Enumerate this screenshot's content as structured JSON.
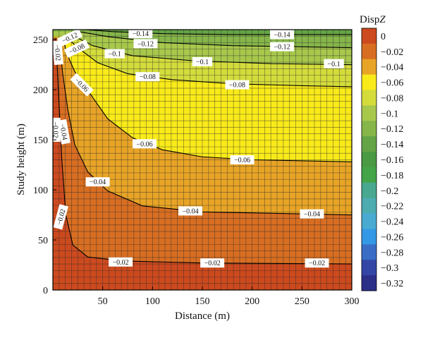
{
  "chart_data": {
    "type": "contour",
    "xlabel": "Distance (m)",
    "ylabel": "Study height (m)",
    "xlim": [
      0,
      300
    ],
    "ylim": [
      0,
      260
    ],
    "x_ticks": [
      50,
      100,
      150,
      200,
      250,
      300
    ],
    "y_ticks": [
      0,
      50,
      100,
      150,
      200,
      250
    ],
    "grid": true,
    "colorbar": {
      "title_prefix": "Disp",
      "title_italic": "Z",
      "levels": [
        0,
        -0.02,
        -0.04,
        -0.06,
        -0.08,
        -0.1,
        -0.12,
        -0.14,
        -0.16,
        -0.18,
        -0.2,
        -0.22,
        -0.24,
        -0.26,
        -0.28,
        -0.3,
        -0.32
      ],
      "colors": [
        "#cc4a1e",
        "#d86e22",
        "#e8a426",
        "#f9ea1a",
        "#d4dc3c",
        "#a8c84c",
        "#86b54a",
        "#64a446",
        "#4a9a44",
        "#43a548",
        "#49a890",
        "#4cacb0",
        "#49abd2",
        "#3399e6",
        "#3a6ec6",
        "#3346a6",
        "#2b2f88"
      ]
    },
    "contours": [
      {
        "level": "-0.02",
        "points": [
          [
            3,
            252
          ],
          [
            6,
            190
          ],
          [
            9,
            130
          ],
          [
            13,
            75
          ],
          [
            20,
            45
          ],
          [
            35,
            33
          ],
          [
            70,
            29
          ],
          [
            150,
            27
          ],
          [
            300,
            26
          ]
        ]
      },
      {
        "level": "-0.04",
        "points": [
          [
            6,
            252
          ],
          [
            10,
            215
          ],
          [
            15,
            180
          ],
          [
            22,
            145
          ],
          [
            35,
            118
          ],
          [
            55,
            99
          ],
          [
            90,
            84
          ],
          [
            150,
            78
          ],
          [
            300,
            75
          ]
        ]
      },
      {
        "level": "-0.06",
        "points": [
          [
            10,
            252
          ],
          [
            14,
            236
          ],
          [
            22,
            218
          ],
          [
            36,
            198
          ],
          [
            55,
            171
          ],
          [
            80,
            152
          ],
          [
            110,
            140
          ],
          [
            150,
            133
          ],
          [
            200,
            130
          ],
          [
            300,
            128
          ]
        ]
      },
      {
        "level": "-0.08",
        "points": [
          [
            14,
            252
          ],
          [
            25,
            242
          ],
          [
            45,
            227
          ],
          [
            75,
            216
          ],
          [
            120,
            210
          ],
          [
            180,
            206
          ],
          [
            250,
            204
          ],
          [
            300,
            203
          ]
        ]
      },
      {
        "level": "-0.1",
        "points": [
          [
            20,
            254
          ],
          [
            40,
            244
          ],
          [
            80,
            234
          ],
          [
            140,
            229
          ],
          [
            220,
            226
          ],
          [
            300,
            225
          ]
        ]
      },
      {
        "level": "-0.12",
        "points": [
          [
            26,
            258
          ],
          [
            55,
            253
          ],
          [
            110,
            247
          ],
          [
            180,
            244
          ],
          [
            300,
            242
          ]
        ]
      },
      {
        "level": "-0.14",
        "points": [
          [
            33,
            260
          ],
          [
            60,
            258
          ],
          [
            110,
            256
          ],
          [
            180,
            255
          ],
          [
            300,
            255
          ]
        ]
      }
    ],
    "contour_labels": [
      {
        "text": "-0.14",
        "x": 88,
        "y": 256
      },
      {
        "text": "-0.14",
        "x": 230,
        "y": 255
      },
      {
        "text": "-0.12",
        "x": 17,
        "y": 252,
        "angle": -25
      },
      {
        "text": "-0.12",
        "x": 93,
        "y": 246
      },
      {
        "text": "-0.12",
        "x": 230,
        "y": 243
      },
      {
        "text": "-0.1",
        "x": 62,
        "y": 236
      },
      {
        "text": "-0.1",
        "x": 150,
        "y": 228
      },
      {
        "text": "-0.1",
        "x": 282,
        "y": 226
      },
      {
        "text": "-0.08",
        "x": 24,
        "y": 241,
        "angle": -25
      },
      {
        "text": "-0.08",
        "x": 95,
        "y": 213
      },
      {
        "text": "-0.08",
        "x": 185,
        "y": 205
      },
      {
        "text": "-0.06",
        "x": 29,
        "y": 205,
        "angle": 45
      },
      {
        "text": "-0.06",
        "x": 92,
        "y": 146
      },
      {
        "text": "-0.06",
        "x": 190,
        "y": 130
      },
      {
        "text": "-0.04",
        "x": 11,
        "y": 158,
        "angle": 80
      },
      {
        "text": "-0.04",
        "x": 45,
        "y": 108
      },
      {
        "text": "-0.04",
        "x": 138,
        "y": 79
      },
      {
        "text": "-0.04",
        "x": 260,
        "y": 76
      },
      {
        "text": "-0.02",
        "x": 5,
        "y": 237,
        "angle": 85
      },
      {
        "text": "-0.02",
        "x": 3,
        "y": 160,
        "angle": 90
      },
      {
        "text": "-0.02",
        "x": 8,
        "y": 73,
        "angle": -75
      },
      {
        "text": "-0.02",
        "x": 68,
        "y": 28
      },
      {
        "text": "-0.02",
        "x": 160,
        "y": 27
      },
      {
        "text": "-0.02",
        "x": 265,
        "y": 27
      }
    ]
  }
}
